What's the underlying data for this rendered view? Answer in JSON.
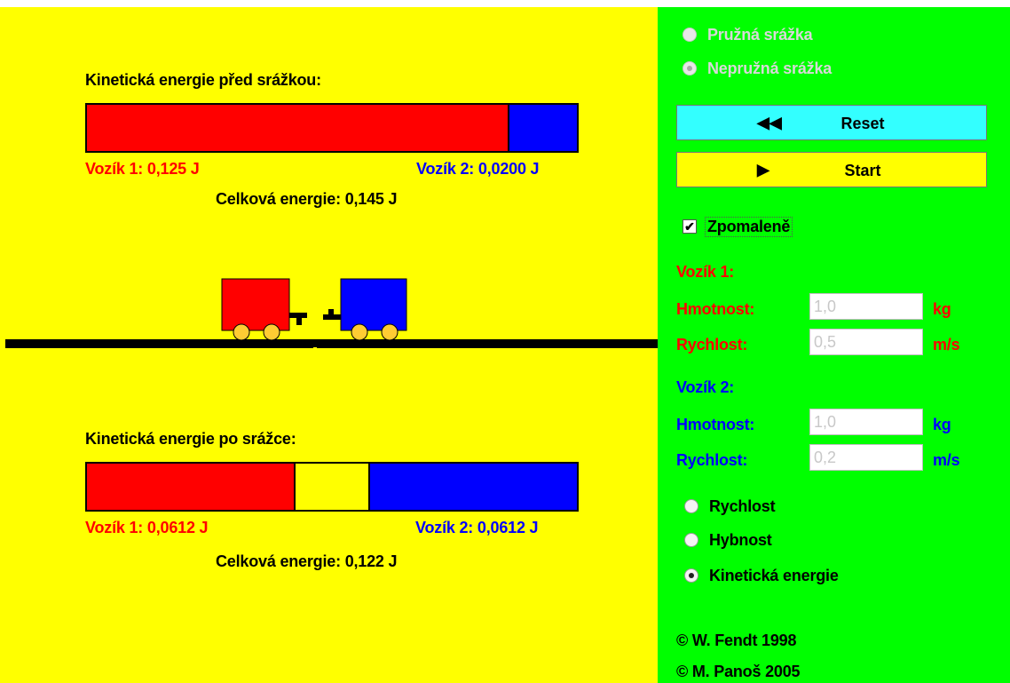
{
  "simulation": {
    "before": {
      "title": "Kinetická energie před srážkou:",
      "cart1_label": "Vozík 1:",
      "cart1_value": "0,125 J",
      "cart2_label": "Vozík 2:",
      "cart2_value": "0,0200 J",
      "total_label": "Celková energie:",
      "total_value": "0,145 J"
    },
    "after": {
      "title": "Kinetická energie po srážce:",
      "cart1_label": "Vozík 1:",
      "cart1_value": "0,0612 J",
      "cart2_label": "Vozík 2:",
      "cart2_value": "0,0612 J",
      "total_label": "Celková energie:",
      "total_value": "0,122 J"
    }
  },
  "panel": {
    "collision_types": [
      {
        "label": "Pružná srážka",
        "selected": false
      },
      {
        "label": "Nepružná srážka",
        "selected": true
      }
    ],
    "reset_label": "Reset",
    "start_label": "Start",
    "slow_motion_label": "Zpomaleně",
    "slow_motion_checked": true,
    "cart1": {
      "heading": "Vozík 1:",
      "mass_label": "Hmotnost:",
      "mass_value": "1,0",
      "mass_unit": "kg",
      "speed_label": "Rychlost:",
      "speed_value": "0,5",
      "speed_unit": "m/s"
    },
    "cart2": {
      "heading": "Vozík 2:",
      "mass_label": "Hmotnost:",
      "mass_value": "1,0",
      "mass_unit": "kg",
      "speed_label": "Rychlost:",
      "speed_value": "0,2",
      "speed_unit": "m/s"
    },
    "display_modes": [
      {
        "label": "Rychlost",
        "selected": false
      },
      {
        "label": "Hybnost",
        "selected": false
      },
      {
        "label": "Kinetická energie",
        "selected": true
      }
    ],
    "credit1": "© W. Fendt 1998",
    "credit2": "© M. Panoš 2005"
  },
  "colors": {
    "cart1": "#ff0000",
    "cart2": "#0000ff",
    "lost_energy": "#ffff00",
    "panel_bg": "#00ff00",
    "sim_bg": "#ffff00"
  }
}
